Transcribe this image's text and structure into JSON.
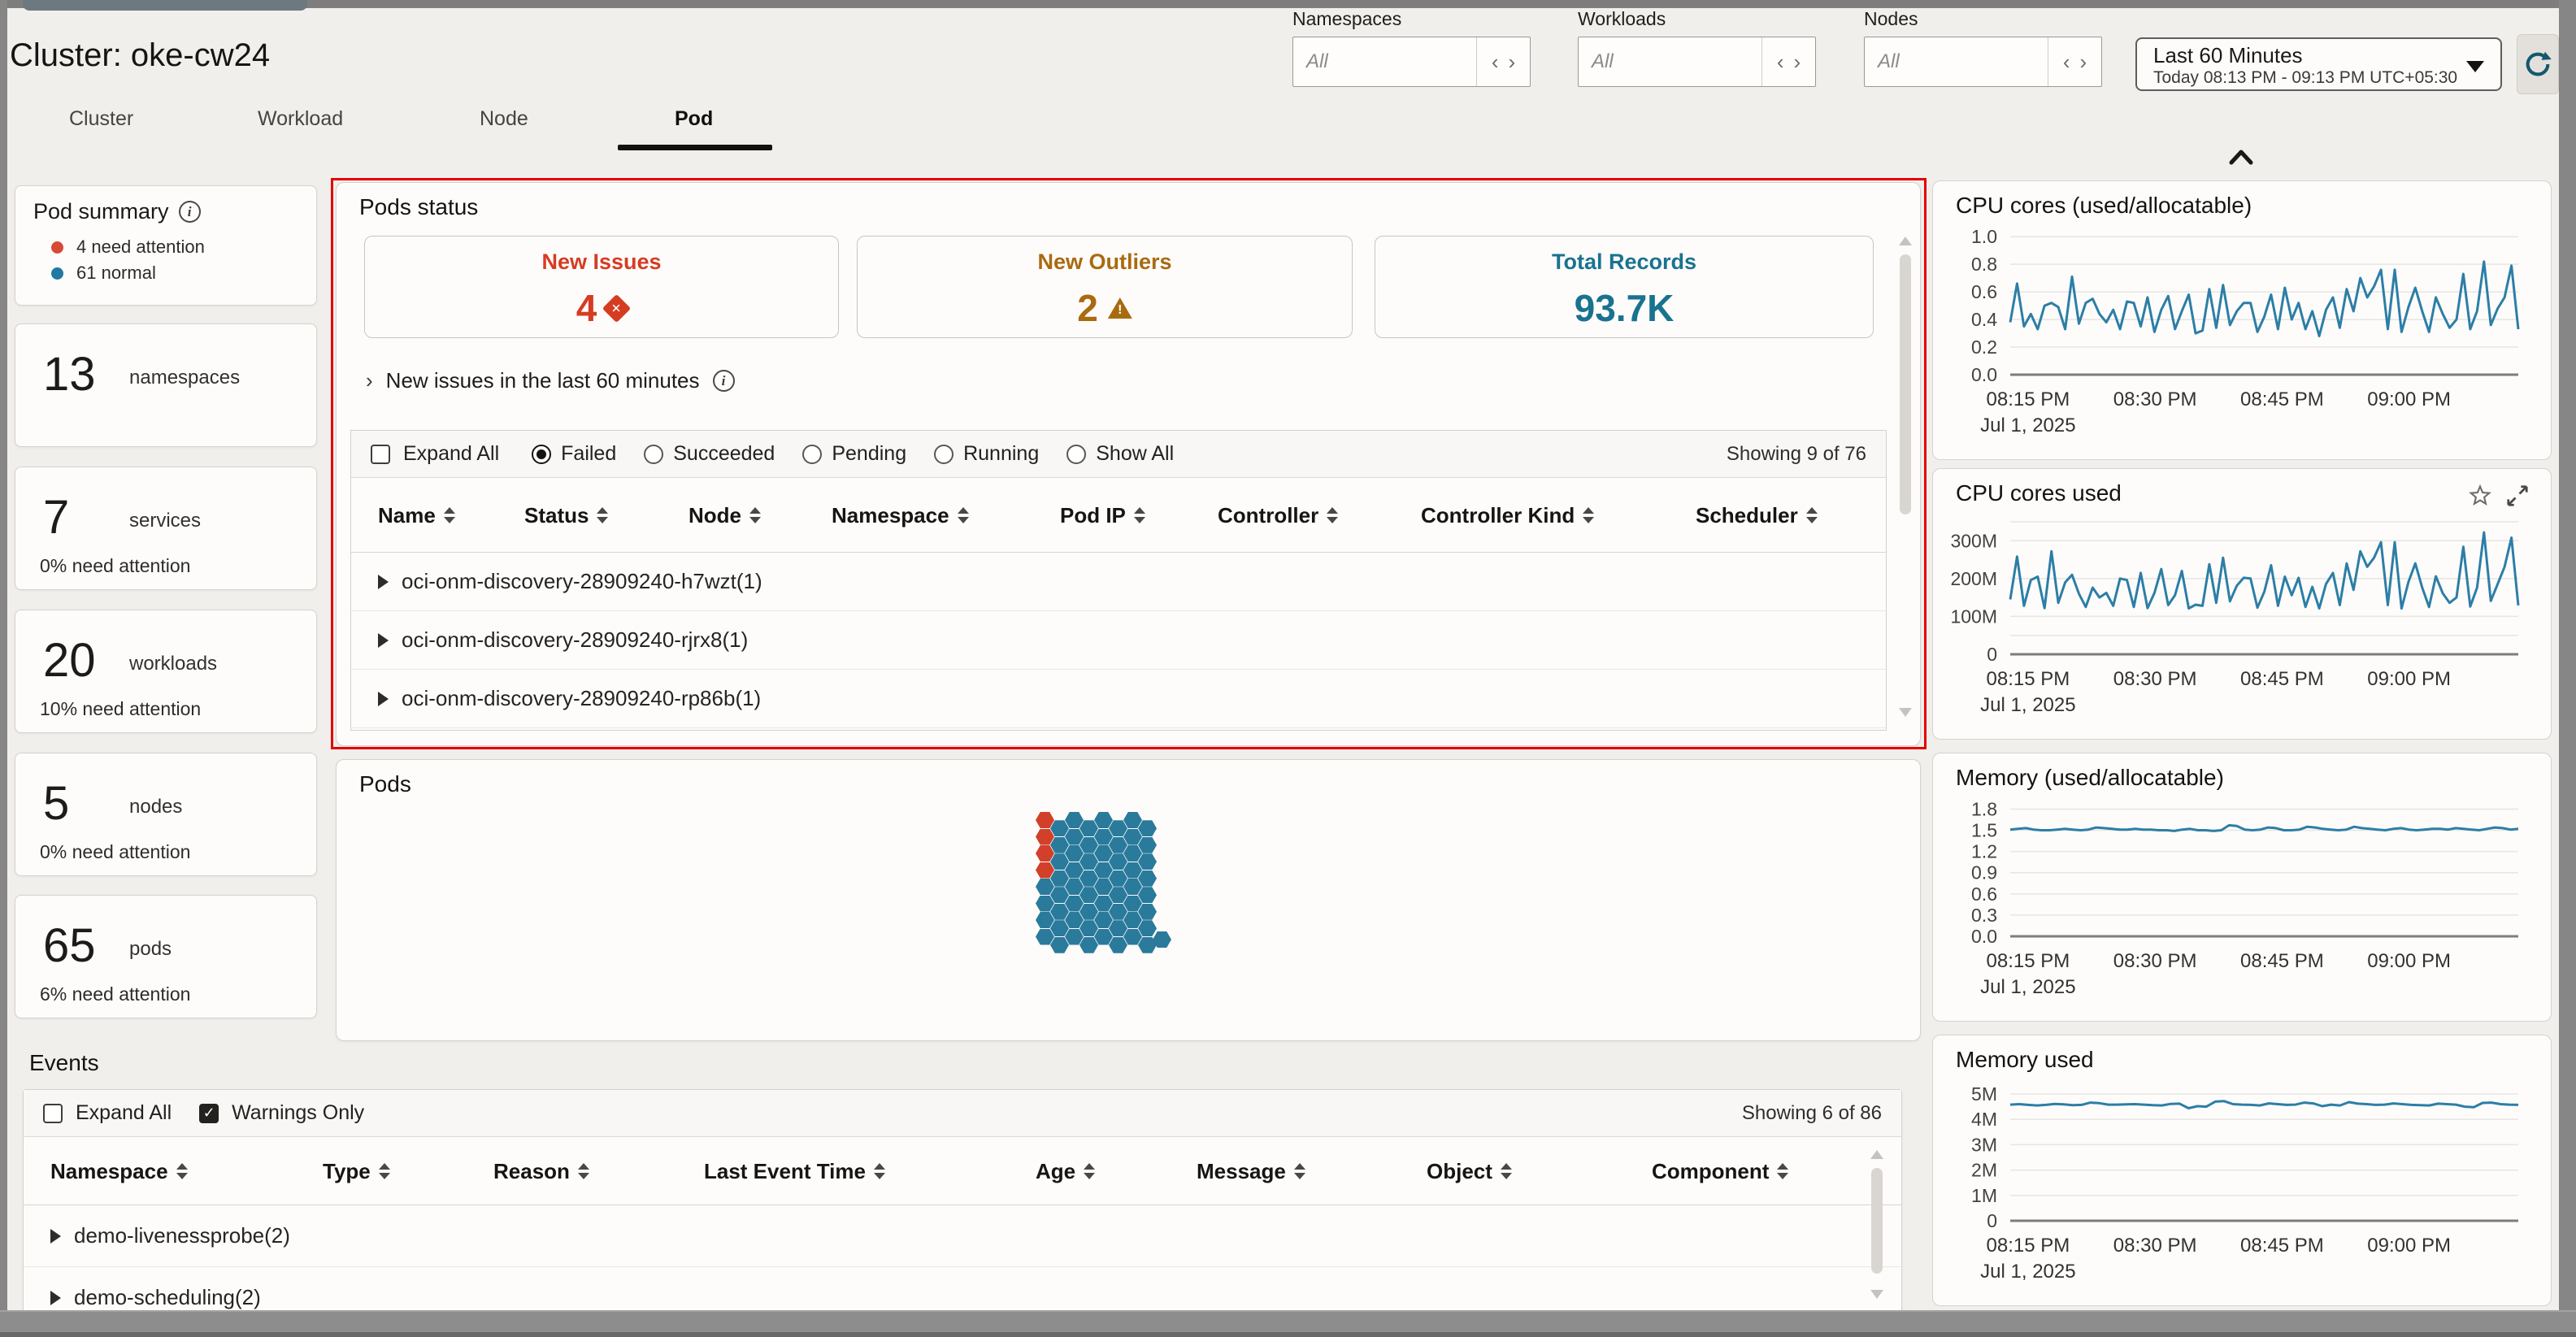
{
  "icons": {
    "pager_prev": "‹",
    "pager_next": "›",
    "expander": "›"
  },
  "colors": {
    "line_blue": "#2c7ea6",
    "error_red": "#d63c22",
    "warning_amber": "#a96a10",
    "info_blue": "#19738f",
    "hex_blue": "#2a7a9b",
    "hex_red": "#d2402a",
    "annotation_red": "#e30000",
    "legend_red": "#d64b35",
    "legend_blue": "#2079a2"
  },
  "header": {
    "title": "Cluster: oke-cw24",
    "tabs": [
      {
        "label": "Cluster",
        "active": false
      },
      {
        "label": "Workload",
        "active": false
      },
      {
        "label": "Node",
        "active": false
      },
      {
        "label": "Pod",
        "active": true
      }
    ],
    "filters": [
      {
        "label": "Namespaces",
        "value": "All"
      },
      {
        "label": "Workloads",
        "value": "All"
      },
      {
        "label": "Nodes",
        "value": "All"
      }
    ],
    "time_range": {
      "label": "Last 60 Minutes",
      "detail": "Today 08:13 PM - 09:13 PM UTC+05:30"
    }
  },
  "sidebar": {
    "pod_summary": {
      "title": "Pod summary",
      "legend": [
        {
          "label": "4 need attention",
          "color": "#d64b35"
        },
        {
          "label": "61 normal",
          "color": "#2079a2"
        }
      ]
    },
    "cards": [
      {
        "value": "13",
        "label": "namespaces",
        "note": ""
      },
      {
        "value": "7",
        "label": "services",
        "note": "0% need attention"
      },
      {
        "value": "20",
        "label": "workloads",
        "note": "10% need attention"
      },
      {
        "value": "5",
        "label": "nodes",
        "note": "0% need attention"
      },
      {
        "value": "65",
        "label": "pods",
        "note": "6% need attention"
      }
    ]
  },
  "pods_status": {
    "title": "Pods status",
    "stats": [
      {
        "label": "New Issues",
        "value": "4",
        "icon": "error-diamond",
        "color": "#d63c22"
      },
      {
        "label": "New Outliers",
        "value": "2",
        "icon": "warning-triangle",
        "color": "#a96a10"
      },
      {
        "label": "Total Records",
        "value": "93.7K",
        "icon": "none",
        "color": "#19738f"
      }
    ],
    "link": {
      "text": "New issues in the last 60 minutes"
    },
    "toolbar": {
      "expand_all": "Expand All",
      "expand_all_checked": false,
      "options": [
        {
          "label": "Failed",
          "selected": true
        },
        {
          "label": "Succeeded",
          "selected": false
        },
        {
          "label": "Pending",
          "selected": false
        },
        {
          "label": "Running",
          "selected": false
        },
        {
          "label": "Show All",
          "selected": false
        }
      ],
      "showing": "Showing 9 of 76"
    },
    "table": {
      "columns": [
        "Name",
        "Status",
        "Node",
        "Namespace",
        "Pod IP",
        "Controller",
        "Controller Kind",
        "Scheduler"
      ],
      "rows": [
        {
          "name": "oci-onm-discovery-28909240-h7wzt(1)"
        },
        {
          "name": "oci-onm-discovery-28909240-rjrx8(1)"
        },
        {
          "name": "oci-onm-discovery-28909240-rp86b(1)"
        }
      ]
    }
  },
  "pods_panel": {
    "title": "Pods",
    "hex": {
      "total": 65,
      "attention": 4,
      "columns": 8,
      "per_column": 8
    }
  },
  "events": {
    "title": "Events",
    "toolbar": {
      "expand_all": "Expand All",
      "expand_all_checked": false,
      "warnings_only": "Warnings Only",
      "warnings_only_checked": true,
      "showing": "Showing 6 of 86"
    },
    "columns": [
      "Namespace",
      "Type",
      "Reason",
      "Last Event Time",
      "Age",
      "Message",
      "Object",
      "Component"
    ],
    "rows": [
      {
        "name": "demo-livenessprobe(2)"
      },
      {
        "name": "demo-scheduling(2)"
      }
    ]
  },
  "chart_data": [
    {
      "type": "line",
      "title": "CPU cores (used/allocatable)",
      "xlabel": "",
      "ylabel": "",
      "ylim": [
        0,
        1.06
      ],
      "y_ticks": [
        {
          "v": 1.0,
          "label": "1.0"
        },
        {
          "v": 0.8,
          "label": "0.8"
        },
        {
          "v": 0.6,
          "label": "0.6"
        },
        {
          "v": 0.4,
          "label": "0.4"
        },
        {
          "v": 0.2,
          "label": "0.2"
        },
        {
          "v": 0,
          "label": "0.0"
        }
      ],
      "x_ticks": [
        {
          "f": 0.035,
          "label": "08:15 PM"
        },
        {
          "f": 0.285,
          "label": "08:30 PM"
        },
        {
          "f": 0.535,
          "label": "08:45 PM"
        },
        {
          "f": 0.785,
          "label": "09:00 PM"
        }
      ],
      "date_label": "Jul 1, 2025",
      "has_actions": false,
      "values": [
        0.38,
        0.66,
        0.35,
        0.44,
        0.33,
        0.5,
        0.52,
        0.49,
        0.33,
        0.71,
        0.37,
        0.52,
        0.55,
        0.44,
        0.38,
        0.47,
        0.33,
        0.53,
        0.52,
        0.35,
        0.56,
        0.31,
        0.47,
        0.57,
        0.33,
        0.46,
        0.58,
        0.3,
        0.32,
        0.62,
        0.34,
        0.65,
        0.36,
        0.46,
        0.52,
        0.52,
        0.31,
        0.42,
        0.58,
        0.33,
        0.63,
        0.4,
        0.52,
        0.33,
        0.46,
        0.28,
        0.47,
        0.56,
        0.34,
        0.62,
        0.46,
        0.7,
        0.56,
        0.64,
        0.76,
        0.33,
        0.76,
        0.31,
        0.49,
        0.63,
        0.46,
        0.31,
        0.56,
        0.44,
        0.34,
        0.4,
        0.73,
        0.33,
        0.46,
        0.82,
        0.36,
        0.48,
        0.56,
        0.79,
        0.33
      ]
    },
    {
      "type": "line",
      "title": "CPU cores used",
      "xlabel": "",
      "ylabel": "",
      "ylim": [
        0,
        365
      ],
      "y_ticks": [
        {
          "v": 350,
          "label": ""
        },
        {
          "v": 300,
          "label": "300M"
        },
        {
          "v": 200,
          "label": "200M"
        },
        {
          "v": 100,
          "label": "100M"
        },
        {
          "v": 50,
          "label": ""
        },
        {
          "v": 0,
          "label": "0"
        }
      ],
      "x_ticks": [
        {
          "f": 0.035,
          "label": "08:15 PM"
        },
        {
          "f": 0.285,
          "label": "08:30 PM"
        },
        {
          "f": 0.535,
          "label": "08:45 PM"
        },
        {
          "f": 0.785,
          "label": "09:00 PM"
        }
      ],
      "date_label": "Jul 1, 2025",
      "has_actions": true,
      "values": [
        145,
        258,
        128,
        196,
        205,
        122,
        272,
        136,
        190,
        210,
        160,
        125,
        176,
        150,
        162,
        128,
        200,
        196,
        125,
        215,
        122,
        162,
        225,
        130,
        156,
        220,
        121,
        131,
        128,
        238,
        136,
        255,
        140,
        181,
        202,
        200,
        123,
        165,
        235,
        128,
        205,
        156,
        202,
        125,
        178,
        121,
        186,
        215,
        130,
        240,
        170,
        272,
        231,
        255,
        296,
        130,
        296,
        121,
        191,
        240,
        176,
        125,
        206,
        161,
        136,
        150,
        284,
        126,
        176,
        322,
        141,
        186,
        231,
        308,
        129
      ]
    },
    {
      "type": "line",
      "title": "Memory (used/allocatable)",
      "xlabel": "",
      "ylabel": "",
      "ylim": [
        0,
        1.92
      ],
      "y_ticks": [
        {
          "v": 1.8,
          "label": "1.8"
        },
        {
          "v": 1.5,
          "label": "1.5"
        },
        {
          "v": 1.2,
          "label": "1.2"
        },
        {
          "v": 0.9,
          "label": "0.9"
        },
        {
          "v": 0.6,
          "label": "0.6"
        },
        {
          "v": 0.3,
          "label": "0.3"
        },
        {
          "v": 0,
          "label": "0.0"
        }
      ],
      "x_ticks": [
        {
          "f": 0.035,
          "label": "08:15 PM"
        },
        {
          "f": 0.285,
          "label": "08:30 PM"
        },
        {
          "f": 0.535,
          "label": "08:45 PM"
        },
        {
          "f": 0.785,
          "label": "09:00 PM"
        }
      ],
      "date_label": "Jul 1, 2025",
      "has_actions": false,
      "values": [
        1.51,
        1.52,
        1.53,
        1.51,
        1.5,
        1.5,
        1.51,
        1.52,
        1.51,
        1.5,
        1.51,
        1.54,
        1.53,
        1.52,
        1.51,
        1.51,
        1.52,
        1.51,
        1.51,
        1.5,
        1.5,
        1.49,
        1.51,
        1.52,
        1.5,
        1.5,
        1.49,
        1.5,
        1.57,
        1.56,
        1.51,
        1.5,
        1.51,
        1.54,
        1.53,
        1.5,
        1.5,
        1.51,
        1.55,
        1.54,
        1.52,
        1.51,
        1.5,
        1.51,
        1.55,
        1.53,
        1.52,
        1.51,
        1.5,
        1.52,
        1.53,
        1.51,
        1.5,
        1.51,
        1.52,
        1.52,
        1.51,
        1.53,
        1.52,
        1.51,
        1.5,
        1.52,
        1.54,
        1.53,
        1.51,
        1.52
      ]
    },
    {
      "type": "line",
      "title": "Memory used",
      "xlabel": "",
      "ylabel": "",
      "ylim": [
        0,
        5.45
      ],
      "y_ticks": [
        {
          "v": 5,
          "label": "5M"
        },
        {
          "v": 4,
          "label": "4M"
        },
        {
          "v": 3,
          "label": "3M"
        },
        {
          "v": 2,
          "label": "2M"
        },
        {
          "v": 1,
          "label": "1M"
        },
        {
          "v": 0,
          "label": "0"
        }
      ],
      "x_ticks": [
        {
          "f": 0.035,
          "label": "08:15 PM"
        },
        {
          "f": 0.285,
          "label": "08:30 PM"
        },
        {
          "f": 0.535,
          "label": "08:45 PM"
        },
        {
          "f": 0.785,
          "label": "09:00 PM"
        }
      ],
      "date_label": "Jul 1, 2025",
      "has_actions": false,
      "values": [
        4.58,
        4.6,
        4.57,
        4.55,
        4.57,
        4.61,
        4.59,
        4.56,
        4.57,
        4.66,
        4.64,
        4.58,
        4.58,
        4.59,
        4.6,
        4.58,
        4.56,
        4.55,
        4.61,
        4.62,
        4.44,
        4.52,
        4.5,
        4.7,
        4.72,
        4.6,
        4.58,
        4.57,
        4.55,
        4.63,
        4.6,
        4.57,
        4.58,
        4.66,
        4.63,
        4.52,
        4.58,
        4.55,
        4.68,
        4.62,
        4.6,
        4.57,
        4.58,
        4.63,
        4.6,
        4.57,
        4.56,
        4.55,
        4.62,
        4.6,
        4.58,
        4.5,
        4.48,
        4.65,
        4.66,
        4.6,
        4.58,
        4.57
      ]
    }
  ]
}
